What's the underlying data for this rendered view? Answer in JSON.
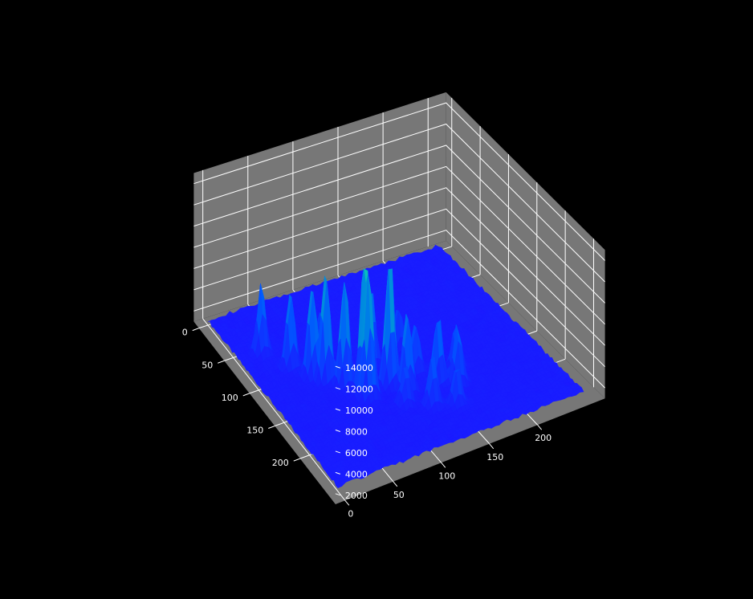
{
  "chart_data": {
    "type": "surface3d",
    "title": "",
    "xlabel": "",
    "ylabel": "",
    "zlabel": "",
    "background": "#000000",
    "pane_color": "#777777",
    "grid_color": "#ffffff",
    "surface_colormap": [
      "#1a1aff",
      "#0057ff",
      "#0096d8",
      "#14e3a0"
    ],
    "grid": true,
    "x_ticks": [
      0,
      50,
      100,
      150,
      200
    ],
    "y_ticks": [
      0,
      50,
      100,
      150,
      200
    ],
    "z_ticks": [
      2000,
      4000,
      6000,
      8000,
      10000,
      12000,
      14000
    ],
    "xlim": [
      0,
      256
    ],
    "ylim": [
      0,
      256
    ],
    "zlim": [
      1000,
      15000
    ],
    "baseline_z": 1300,
    "peaks": [
      {
        "x": 60,
        "y": 25,
        "z": 7800
      },
      {
        "x": 90,
        "y": 40,
        "z": 8800
      },
      {
        "x": 110,
        "y": 52,
        "z": 10200
      },
      {
        "x": 122,
        "y": 60,
        "z": 12000
      },
      {
        "x": 135,
        "y": 73,
        "z": 11500
      },
      {
        "x": 150,
        "y": 86,
        "z": 14000
      },
      {
        "x": 155,
        "y": 110,
        "z": 13800
      },
      {
        "x": 160,
        "y": 85,
        "z": 12600
      },
      {
        "x": 170,
        "y": 120,
        "z": 9000
      },
      {
        "x": 175,
        "y": 150,
        "z": 8000
      },
      {
        "x": 185,
        "y": 165,
        "z": 7000
      },
      {
        "x": 95,
        "y": 70,
        "z": 6500
      },
      {
        "x": 120,
        "y": 110,
        "z": 8500
      },
      {
        "x": 140,
        "y": 120,
        "z": 7500
      },
      {
        "x": 150,
        "y": 140,
        "z": 6000
      },
      {
        "x": 165,
        "y": 175,
        "z": 5500
      },
      {
        "x": 110,
        "y": 145,
        "z": 5000
      },
      {
        "x": 185,
        "y": 110,
        "z": 5000
      },
      {
        "x": 200,
        "y": 130,
        "z": 6200
      },
      {
        "x": 210,
        "y": 150,
        "z": 5200
      }
    ]
  }
}
